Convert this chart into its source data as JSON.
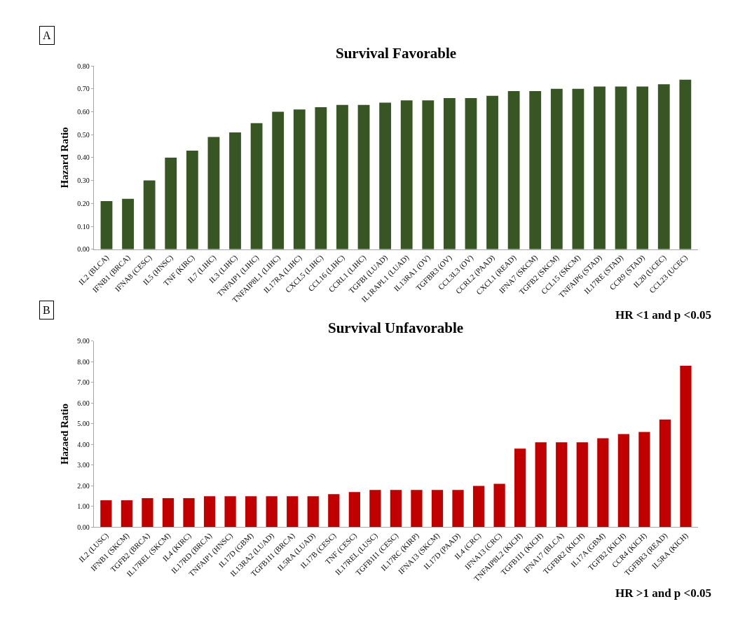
{
  "chart_data": [
    {
      "type": "bar",
      "title": "Survival Favorable",
      "ylabel": "Hazard Ratio",
      "annotations": [
        "A",
        "HR <1 and p <0.05"
      ],
      "categories": [
        "IL2 (BLCA)",
        "IFNB1 (BRCA)",
        "IFNA8 (CESC)",
        "IL5 (HNSC)",
        "TNF (KIRC)",
        "IL7 (LIHC)",
        "IL3 (LIHC)",
        "TNFAIP1 (LIHC)",
        "TNFAIP8L1 (LIHC)",
        "IL17RA (LIHC)",
        "CXCL5 (LIHC)",
        "CCL16 (LIHC)",
        "CCRL1 (LIHC)",
        "TGFBI (LUAD)",
        "IL1RAPL1 (LUAD)",
        "IL13RA1 (OV)",
        "TGFBR3 (OV)",
        "CCL3L3 (OV)",
        "CCRL2 (PAAD)",
        "CXCL1 (READ)",
        "IFNA7 (SKCM)",
        "TGFB2 (SKCM)",
        "CCL15 (SKCM)",
        "TNFAIP6 (STAD)",
        "IL17RE (STAD)",
        "CCR9 (STAD)",
        "IL20 (UCEC)",
        "CCL23 (UCEC)"
      ],
      "values": [
        0.21,
        0.22,
        0.3,
        0.4,
        0.43,
        0.49,
        0.51,
        0.55,
        0.6,
        0.61,
        0.62,
        0.63,
        0.63,
        0.64,
        0.65,
        0.65,
        0.66,
        0.66,
        0.67,
        0.69,
        0.69,
        0.7,
        0.7,
        0.71,
        0.71,
        0.71,
        0.72,
        0.74
      ],
      "color": "#375623",
      "ylim": [
        0,
        0.8
      ],
      "yticks": [
        {
          "value": 0,
          "label": "0.00"
        },
        {
          "value": 0.1,
          "label": "0.10"
        },
        {
          "value": 0.2,
          "label": "0.20"
        },
        {
          "value": 0.3,
          "label": "0.30"
        },
        {
          "value": 0.4,
          "label": "0.40"
        },
        {
          "value": 0.5,
          "label": "0.50"
        },
        {
          "value": 0.6,
          "label": "0.60"
        },
        {
          "value": 0.7,
          "label": "0.70"
        },
        {
          "value": 0.8,
          "label": "0.80"
        }
      ]
    },
    {
      "type": "bar",
      "title": "Survival Unfavorable",
      "ylabel": "Hazaed Ratio",
      "annotations": [
        "B",
        "HR >1 and p <0.05"
      ],
      "categories": [
        "IL2 (LUSC)",
        "IFNB1 (SKCM)",
        "TGFB2 (BRCA)",
        "IL17REL (SKCM)",
        "IL4 (KIRC)",
        "IL17RD (BRCA)",
        "TNFAIP1 (HNSC)",
        "IL17D (GBM)",
        "IL13RA2 (LUAD)",
        "TGFB1I1 (BRCA)",
        "IL5RA (LUAD)",
        "IL17B (CESC)",
        "TNF (CESC)",
        "IL17REL (LUSC)",
        "TGFB1I1 (CESC)",
        "IL17RC (KIRP)",
        "IFNA13 (SKCM)",
        "IL17D (PAAD)",
        "IL4 (CRC)",
        "IFNA13 (CRC)",
        "TNFAIP8L2 (KICH)",
        "TGFB1I1 (KICH)",
        "IFNA17 (BLCA)",
        "TGFBR2 (KICH)",
        "IL17A (GBM)",
        "TGFB2 (KICH)",
        "CCR4 (KICH)",
        "TGFBR3 (READ)",
        "IL5RA (KICH)"
      ],
      "values": [
        1.3,
        1.3,
        1.4,
        1.4,
        1.4,
        1.5,
        1.5,
        1.5,
        1.5,
        1.5,
        1.5,
        1.6,
        1.7,
        1.8,
        1.8,
        1.8,
        1.8,
        1.8,
        2.0,
        2.1,
        3.8,
        4.1,
        4.1,
        4.1,
        4.3,
        4.5,
        4.6,
        5.2,
        7.8
      ],
      "color": "#c00000",
      "ylim": [
        0,
        9
      ],
      "yticks": [
        {
          "value": 0,
          "label": "0.00"
        },
        {
          "value": 1,
          "label": "1.00"
        },
        {
          "value": 2,
          "label": "2.00"
        },
        {
          "value": 3,
          "label": "3.00"
        },
        {
          "value": 4,
          "label": "4.00"
        },
        {
          "value": 5,
          "label": "5.00"
        },
        {
          "value": 6,
          "label": "6.00"
        },
        {
          "value": 7,
          "label": "7.00"
        },
        {
          "value": 8,
          "label": "8.00"
        },
        {
          "value": 9,
          "label": "9.00"
        }
      ]
    }
  ]
}
